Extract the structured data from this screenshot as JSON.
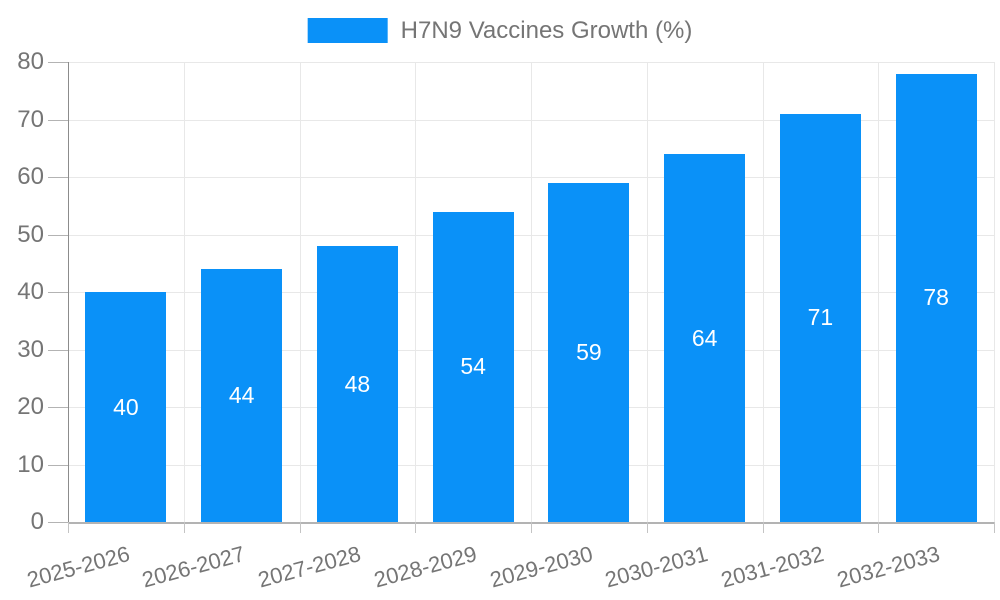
{
  "chart_data": {
    "type": "bar",
    "title": "H7N9 Vaccines Growth (%)",
    "categories": [
      "2025-2026",
      "2026-2027",
      "2027-2028",
      "2028-2029",
      "2029-2030",
      "2030-2031",
      "2031-2032",
      "2032-2033"
    ],
    "values": [
      40,
      44,
      48,
      54,
      59,
      64,
      71,
      78
    ],
    "series": [
      {
        "name": "H7N9 Vaccines Growth (%)",
        "values": [
          40,
          44,
          48,
          54,
          59,
          64,
          71,
          78
        ]
      }
    ],
    "xlabel": "",
    "ylabel": "",
    "ylim": [
      0,
      80
    ],
    "yticks": [
      0,
      10,
      20,
      30,
      40,
      50,
      60,
      70,
      80
    ],
    "grid": true,
    "legend_position": "top-center",
    "bar_value_labels": "inside-center",
    "x_label_rotation_deg": -15,
    "colors": {
      "bar": "#0a91f8",
      "bar_value_label": "#ffffff",
      "axis_text": "#757575",
      "gridline": "#e8e8e8",
      "y_axis_line": "#8c8c8c",
      "x_axis_line": "#b3b3b3",
      "tick": "#c4c4c4",
      "background": "#ffffff"
    }
  }
}
